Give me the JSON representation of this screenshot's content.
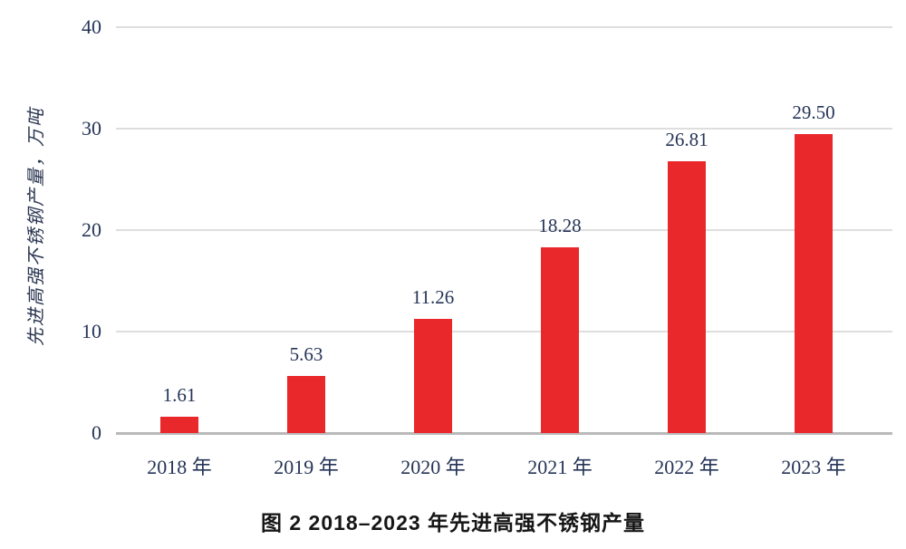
{
  "figure": {
    "caption": "图 2  2018–2023 年先进高强不锈钢产量",
    "y_axis_title": "先进高强不锈钢产量，万吨"
  },
  "chart_data": {
    "type": "bar",
    "title": "图 2  2018–2023 年先进高强不锈钢产量",
    "categories": [
      "2018 年",
      "2019 年",
      "2020 年",
      "2021 年",
      "2022 年",
      "2023 年"
    ],
    "values": [
      1.61,
      5.63,
      11.26,
      18.28,
      26.81,
      29.5
    ],
    "value_labels": [
      "1.61",
      "5.63",
      "11.26",
      "18.28",
      "26.81",
      "29.50"
    ],
    "xlabel": "",
    "ylabel": "先进高强不锈钢产量，万吨",
    "ylim": [
      0,
      40
    ],
    "yticks": [
      0,
      10,
      20,
      30,
      40
    ],
    "grid": "horizontal",
    "legend": "none",
    "bar_color": "#e9282c"
  },
  "colors": {
    "bar": "#e9282c",
    "text": "#253457",
    "gridline": "#dedede",
    "axis_line": "#b9b9b9",
    "caption": "#161616",
    "background": "#ffffff"
  }
}
